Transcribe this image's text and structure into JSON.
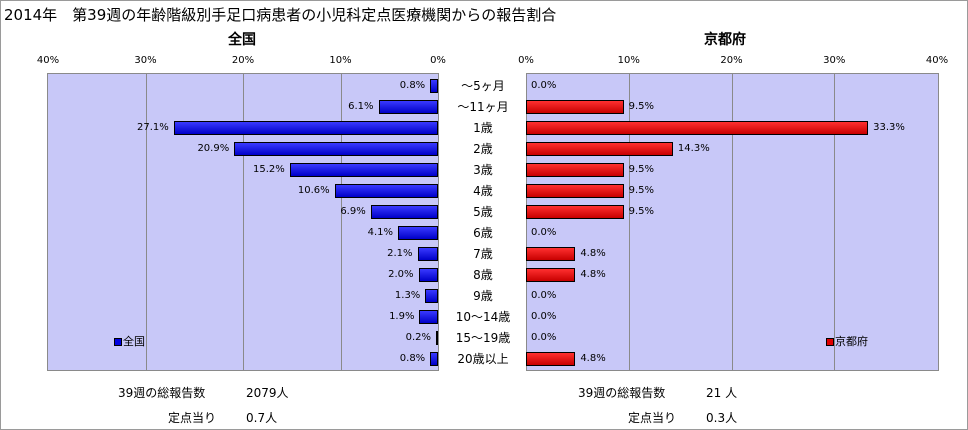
{
  "title": "2014年　第39週の年齢階級別手足口病患者の小児科定点医療機関からの報告割合",
  "chart_data": [
    {
      "type": "bar",
      "orientation": "horizontal",
      "direction": "right-to-left",
      "title": "全国",
      "xlim": [
        0,
        40
      ],
      "ticks": [
        "40%",
        "30%",
        "20%",
        "10%",
        "0%"
      ],
      "tick_values": [
        40,
        30,
        20,
        10,
        0
      ],
      "grid": true,
      "legend": "bottom-left",
      "color": "#0000e0",
      "categories": [
        "～5ヶ月",
        "～11ヶ月",
        "1歳",
        "2歳",
        "3歳",
        "4歳",
        "5歳",
        "6歳",
        "7歳",
        "8歳",
        "9歳",
        "10～14歳",
        "15～19歳",
        "20歳以上"
      ],
      "series": [
        {
          "name": "全国",
          "values": [
            0.8,
            6.1,
            27.1,
            20.9,
            15.2,
            10.6,
            6.9,
            4.1,
            2.1,
            2.0,
            1.3,
            1.9,
            0.2,
            0.8
          ],
          "labels": [
            "0.8%",
            "6.1%",
            "27.1%",
            "20.9%",
            "15.2%",
            "10.6%",
            "6.9%",
            "4.1%",
            "2.1%",
            "2.0%",
            "1.3%",
            "1.9%",
            "0.2%",
            "0.8%"
          ]
        }
      ]
    },
    {
      "type": "bar",
      "orientation": "horizontal",
      "direction": "left-to-right",
      "title": "京都府",
      "xlim": [
        0,
        40
      ],
      "ticks": [
        "0%",
        "10%",
        "20%",
        "30%",
        "40%"
      ],
      "tick_values": [
        0,
        10,
        20,
        30,
        40
      ],
      "grid": true,
      "legend": "bottom-right",
      "color": "#e00000",
      "categories": [
        "～5ヶ月",
        "～11ヶ月",
        "1歳",
        "2歳",
        "3歳",
        "4歳",
        "5歳",
        "6歳",
        "7歳",
        "8歳",
        "9歳",
        "10～14歳",
        "15～19歳",
        "20歳以上"
      ],
      "series": [
        {
          "name": "京都府",
          "values": [
            0.0,
            9.5,
            33.3,
            14.3,
            9.5,
            9.5,
            9.5,
            0.0,
            4.8,
            4.8,
            0.0,
            0.0,
            0.0,
            4.8
          ],
          "labels": [
            "0.0%",
            "9.5%",
            "33.3%",
            "14.3%",
            "9.5%",
            "9.5%",
            "9.5%",
            "0.0%",
            "4.8%",
            "4.8%",
            "0.0%",
            "0.0%",
            "0.0%",
            "4.8%"
          ]
        }
      ]
    }
  ],
  "summary": {
    "national": {
      "total_label": "39週の総報告数",
      "total_value": "2079人",
      "per_site_label": "定点当り",
      "per_site_value": "0.7人"
    },
    "kyoto": {
      "total_label": "39週の総報告数",
      "total_value": "21 人",
      "per_site_label": "定点当り",
      "per_site_value": "0.3人"
    }
  }
}
